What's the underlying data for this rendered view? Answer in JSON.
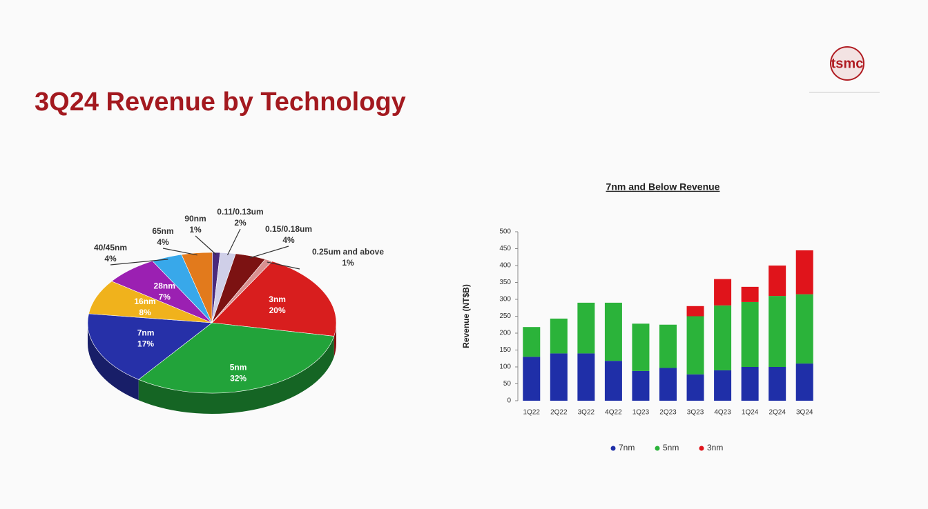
{
  "title": "3Q24 Revenue by Technology",
  "logo": "tsmc",
  "chart_data": [
    {
      "type": "pie",
      "categories": [
        "3nm",
        "5nm",
        "7nm",
        "16nm",
        "28nm",
        "40/45nm",
        "65nm",
        "90nm",
        "0.11/0.13um",
        "0.15/0.18um",
        "0.25um and above"
      ],
      "values": [
        20,
        32,
        17,
        8,
        7,
        4,
        4,
        1,
        2,
        4,
        1
      ],
      "value_labels": [
        "20%",
        "32%",
        "17%",
        "8%",
        "7%",
        "4%",
        "4%",
        "1%",
        "2%",
        "4%",
        "1%"
      ],
      "colors": [
        "#d81e1e",
        "#22a33a",
        "#2630a8",
        "#f0b21c",
        "#9b20b2",
        "#38a8ea",
        "#e27a1c",
        "#4b2a7c",
        "#cfcfe8",
        "#7c1212",
        "#d99090"
      ]
    },
    {
      "type": "bar",
      "stacked": true,
      "title": "7nm and Below Revenue",
      "ylabel": "Revenue (NT$B)",
      "categories": [
        "1Q22",
        "2Q22",
        "3Q22",
        "4Q22",
        "1Q23",
        "2Q23",
        "3Q23",
        "4Q23",
        "1Q24",
        "2Q24",
        "3Q24"
      ],
      "series": [
        {
          "name": "7nm",
          "color": "#1f2fa8",
          "values": [
            130,
            140,
            140,
            118,
            88,
            97,
            78,
            90,
            100,
            100,
            110
          ]
        },
        {
          "name": "5nm",
          "color": "#2bb33a",
          "values": [
            88,
            103,
            150,
            172,
            140,
            128,
            172,
            192,
            192,
            210,
            205
          ]
        },
        {
          "name": "3nm",
          "color": "#e0141b",
          "values": [
            0,
            0,
            0,
            0,
            0,
            0,
            30,
            78,
            45,
            90,
            130
          ]
        }
      ],
      "ylim": [
        0,
        500
      ],
      "yticks": [
        0,
        50,
        100,
        150,
        200,
        250,
        300,
        350,
        400,
        450,
        500
      ],
      "legend": "bottom"
    }
  ]
}
